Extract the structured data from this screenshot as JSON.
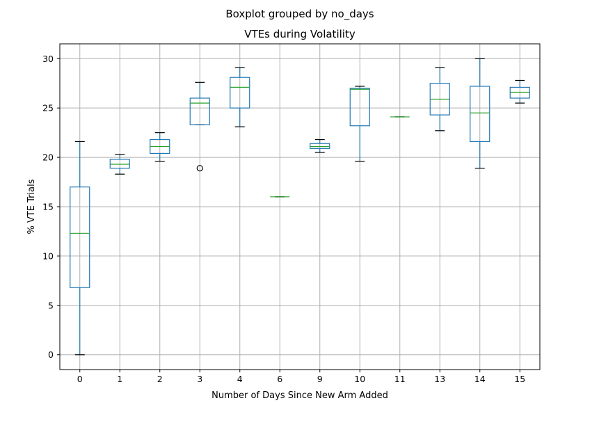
{
  "chart_data": {
    "type": "boxplot",
    "suptitle": "Boxplot grouped by no_days",
    "title": "VTEs during Volatility",
    "xlabel": "Number of Days Since New Arm Added",
    "ylabel": "% VTE Trials",
    "ylim": [
      -1.5,
      31.5
    ],
    "yticks": [
      0,
      5,
      10,
      15,
      20,
      25,
      30
    ],
    "grid": true,
    "categories": [
      "0",
      "1",
      "2",
      "3",
      "4",
      "6",
      "9",
      "10",
      "11",
      "13",
      "14",
      "15"
    ],
    "boxes": [
      {
        "category": "0",
        "whislo": 0.0,
        "q1": 6.8,
        "med": 12.3,
        "q3": 17.0,
        "whishi": 21.6,
        "fliers": []
      },
      {
        "category": "1",
        "whislo": 18.3,
        "q1": 18.9,
        "med": 19.3,
        "q3": 19.8,
        "whishi": 20.3,
        "fliers": []
      },
      {
        "category": "2",
        "whislo": 19.6,
        "q1": 20.4,
        "med": 21.1,
        "q3": 21.8,
        "whishi": 22.5,
        "fliers": []
      },
      {
        "category": "3",
        "whislo": 23.3,
        "q1": 23.3,
        "med": 25.5,
        "q3": 26.0,
        "whishi": 27.6,
        "fliers": [
          18.9
        ]
      },
      {
        "category": "4",
        "whislo": 23.1,
        "q1": 25.0,
        "med": 27.1,
        "q3": 28.1,
        "whishi": 29.1,
        "fliers": []
      },
      {
        "category": "6",
        "whislo": 16.0,
        "q1": 16.0,
        "med": 16.0,
        "q3": 16.0,
        "whishi": 16.0,
        "fliers": []
      },
      {
        "category": "9",
        "whislo": 20.5,
        "q1": 20.9,
        "med": 21.1,
        "q3": 21.4,
        "whishi": 21.8,
        "fliers": []
      },
      {
        "category": "10",
        "whislo": 19.6,
        "q1": 23.2,
        "med": 26.9,
        "q3": 27.0,
        "whishi": 27.2,
        "fliers": []
      },
      {
        "category": "11",
        "whislo": 24.1,
        "q1": 24.1,
        "med": 24.1,
        "q3": 24.1,
        "whishi": 24.1,
        "fliers": []
      },
      {
        "category": "13",
        "whislo": 22.7,
        "q1": 24.3,
        "med": 25.9,
        "q3": 27.5,
        "whishi": 29.1,
        "fliers": []
      },
      {
        "category": "14",
        "whislo": 18.9,
        "q1": 21.6,
        "med": 24.5,
        "q3": 27.2,
        "whishi": 30.0,
        "fliers": []
      },
      {
        "category": "15",
        "whislo": 25.5,
        "q1": 26.0,
        "med": 26.6,
        "q3": 27.1,
        "whishi": 27.8,
        "fliers": []
      }
    ]
  }
}
